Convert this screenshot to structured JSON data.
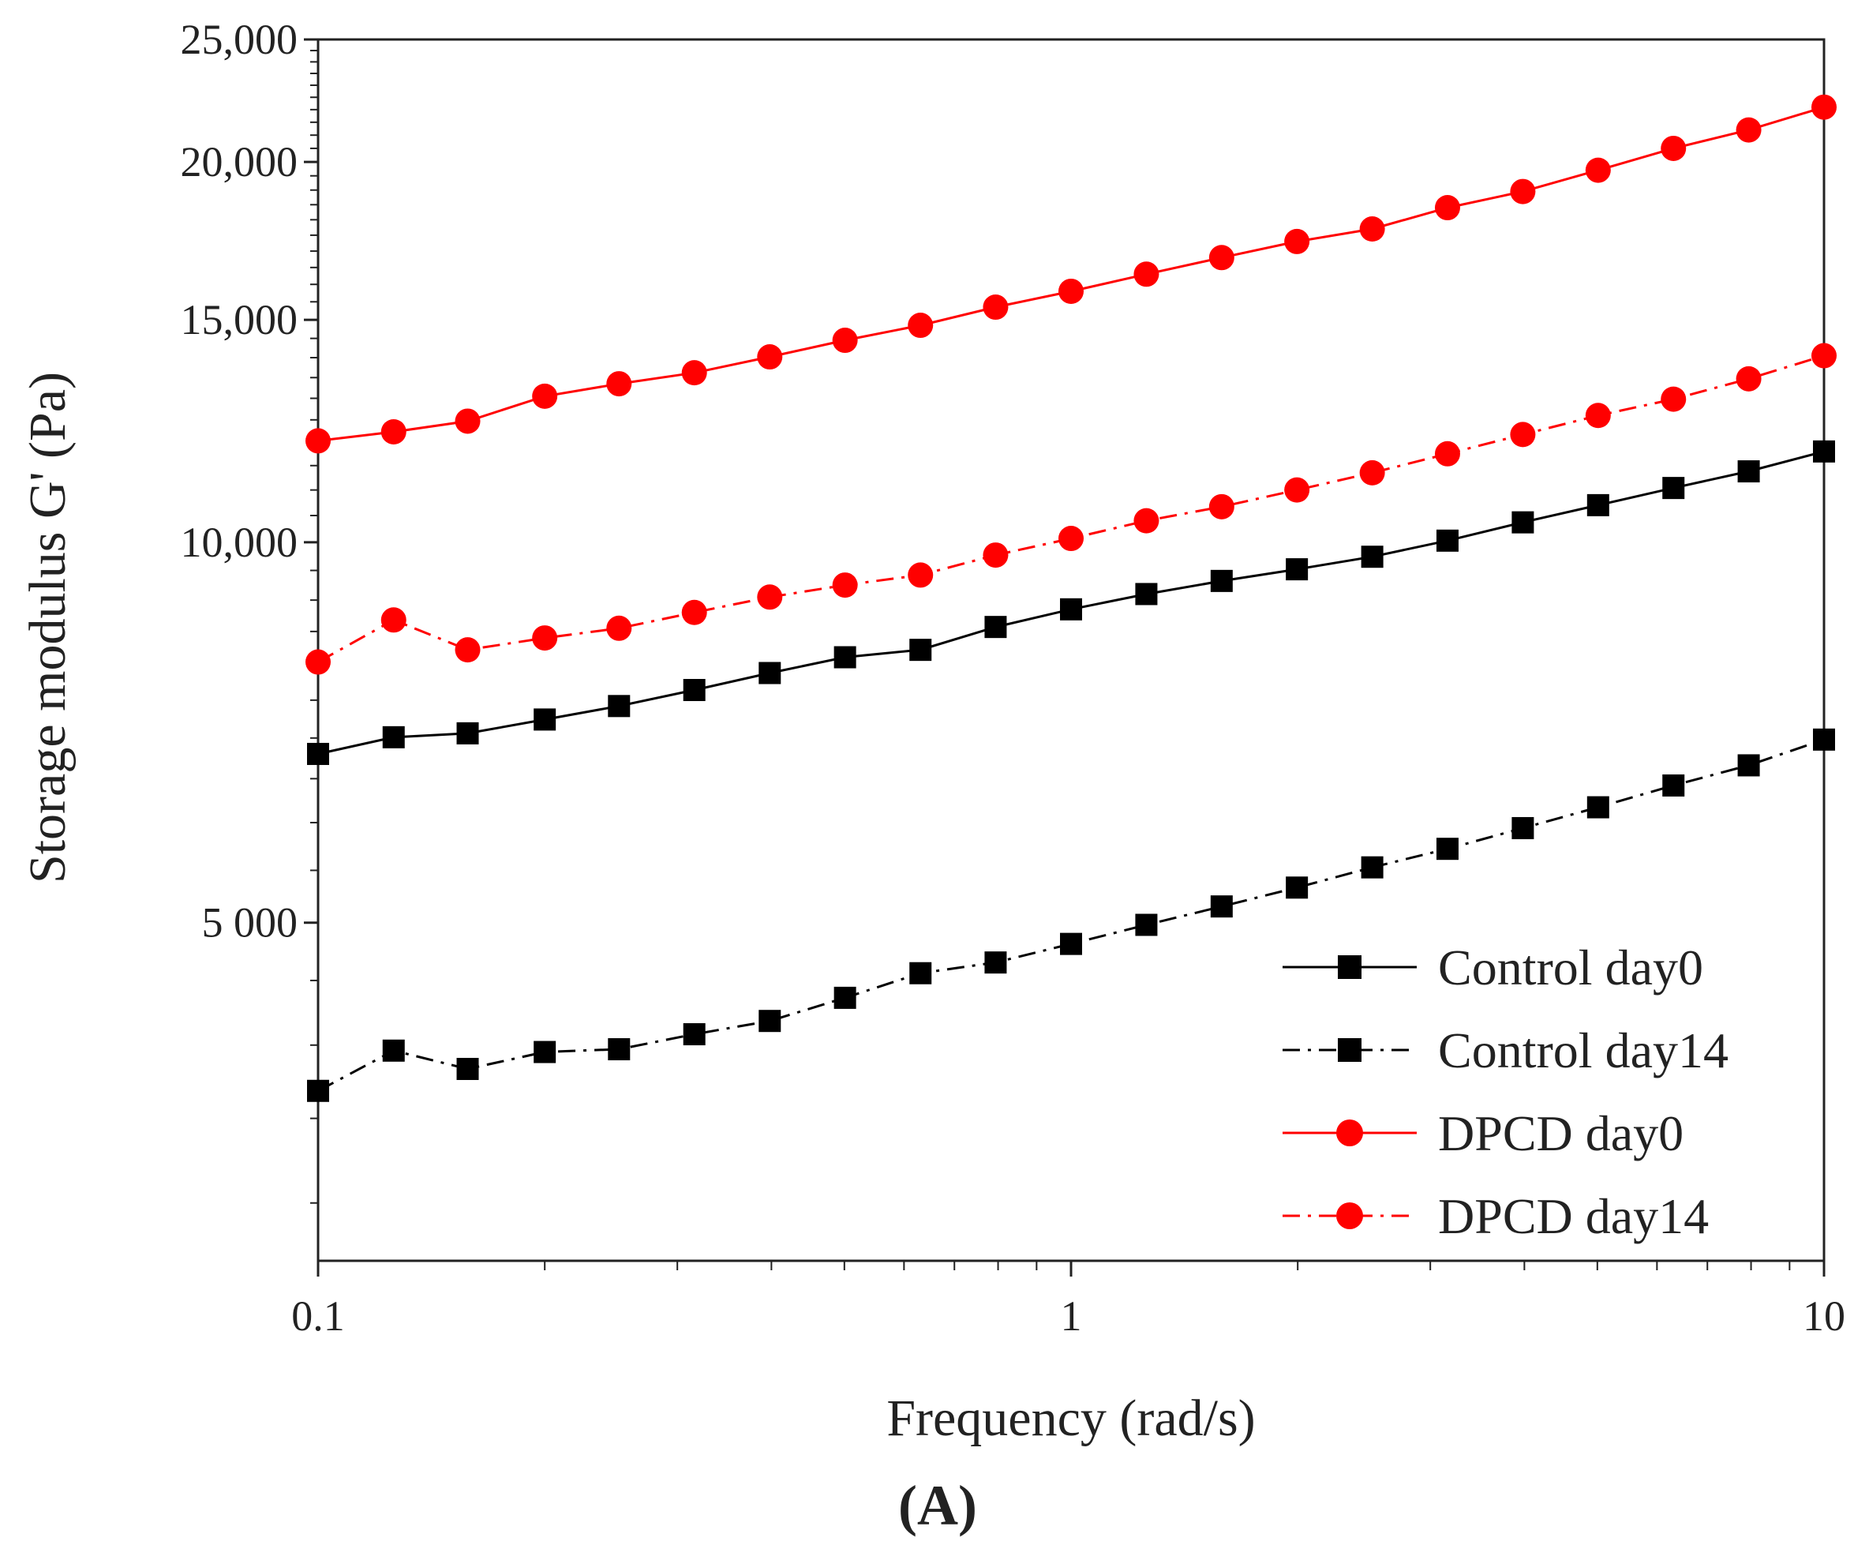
{
  "chart_data": {
    "type": "line",
    "title": "",
    "xlabel": "Frequency (rad/s)",
    "ylabel": "Storage modulus G' (Pa)",
    "xscale": "log",
    "yscale": "log",
    "xlim": [
      0.1,
      10
    ],
    "ylim": [
      2700,
      25000
    ],
    "x_ticks": [
      {
        "value": 0.1,
        "label": "0.1"
      },
      {
        "value": 1,
        "label": "1"
      },
      {
        "value": 10,
        "label": "10"
      }
    ],
    "y_ticks": [
      {
        "value": 5000,
        "label": "5 000"
      },
      {
        "value": 10000,
        "label": "10,000"
      },
      {
        "value": 15000,
        "label": "15,000"
      },
      {
        "value": 20000,
        "label": "20,000"
      },
      {
        "value": 25000,
        "label": "25,000"
      }
    ],
    "x": [
      0.1,
      0.126,
      0.158,
      0.2,
      0.251,
      0.316,
      0.398,
      0.501,
      0.631,
      0.794,
      1.0,
      1.259,
      1.585,
      1.995,
      2.512,
      3.162,
      3.981,
      5.012,
      6.31,
      7.943,
      10.0
    ],
    "series": [
      {
        "name": "Control day0",
        "color": "#000000",
        "line_style": "solid",
        "marker": "square",
        "values": [
          6800,
          7010,
          7060,
          7240,
          7420,
          7640,
          7880,
          8110,
          8220,
          8570,
          8850,
          9100,
          9320,
          9520,
          9740,
          10030,
          10370,
          10700,
          11040,
          11380,
          11800
        ]
      },
      {
        "name": "Control day14",
        "color": "#000000",
        "line_style": "dashdot",
        "marker": "square",
        "values": [
          3680,
          3960,
          3830,
          3950,
          3970,
          4080,
          4180,
          4360,
          4560,
          4650,
          4810,
          4980,
          5150,
          5330,
          5530,
          5720,
          5940,
          6170,
          6420,
          6660,
          6980
        ]
      },
      {
        "name": "DPCD day0",
        "color": "#ff0000",
        "line_style": "solid",
        "marker": "circle",
        "values": [
          12030,
          12230,
          12470,
          13050,
          13350,
          13620,
          14020,
          14450,
          14850,
          15350,
          15800,
          16300,
          16800,
          17300,
          17700,
          18400,
          18950,
          19700,
          20500,
          21200,
          22100
        ]
      },
      {
        "name": "DPCD day14",
        "color": "#ff0000",
        "line_style": "dashdot",
        "marker": "circle",
        "values": [
          8040,
          8680,
          8220,
          8400,
          8550,
          8800,
          9050,
          9250,
          9420,
          9770,
          10070,
          10400,
          10670,
          11000,
          11350,
          11750,
          12170,
          12600,
          12980,
          13470,
          14050
        ]
      }
    ],
    "legend": {
      "placement": "bottom-right",
      "entries": [
        "Control day0",
        "Control day14",
        "DPCD day0",
        "DPCD day14"
      ]
    },
    "grid": false
  },
  "panel_label": "(A)"
}
